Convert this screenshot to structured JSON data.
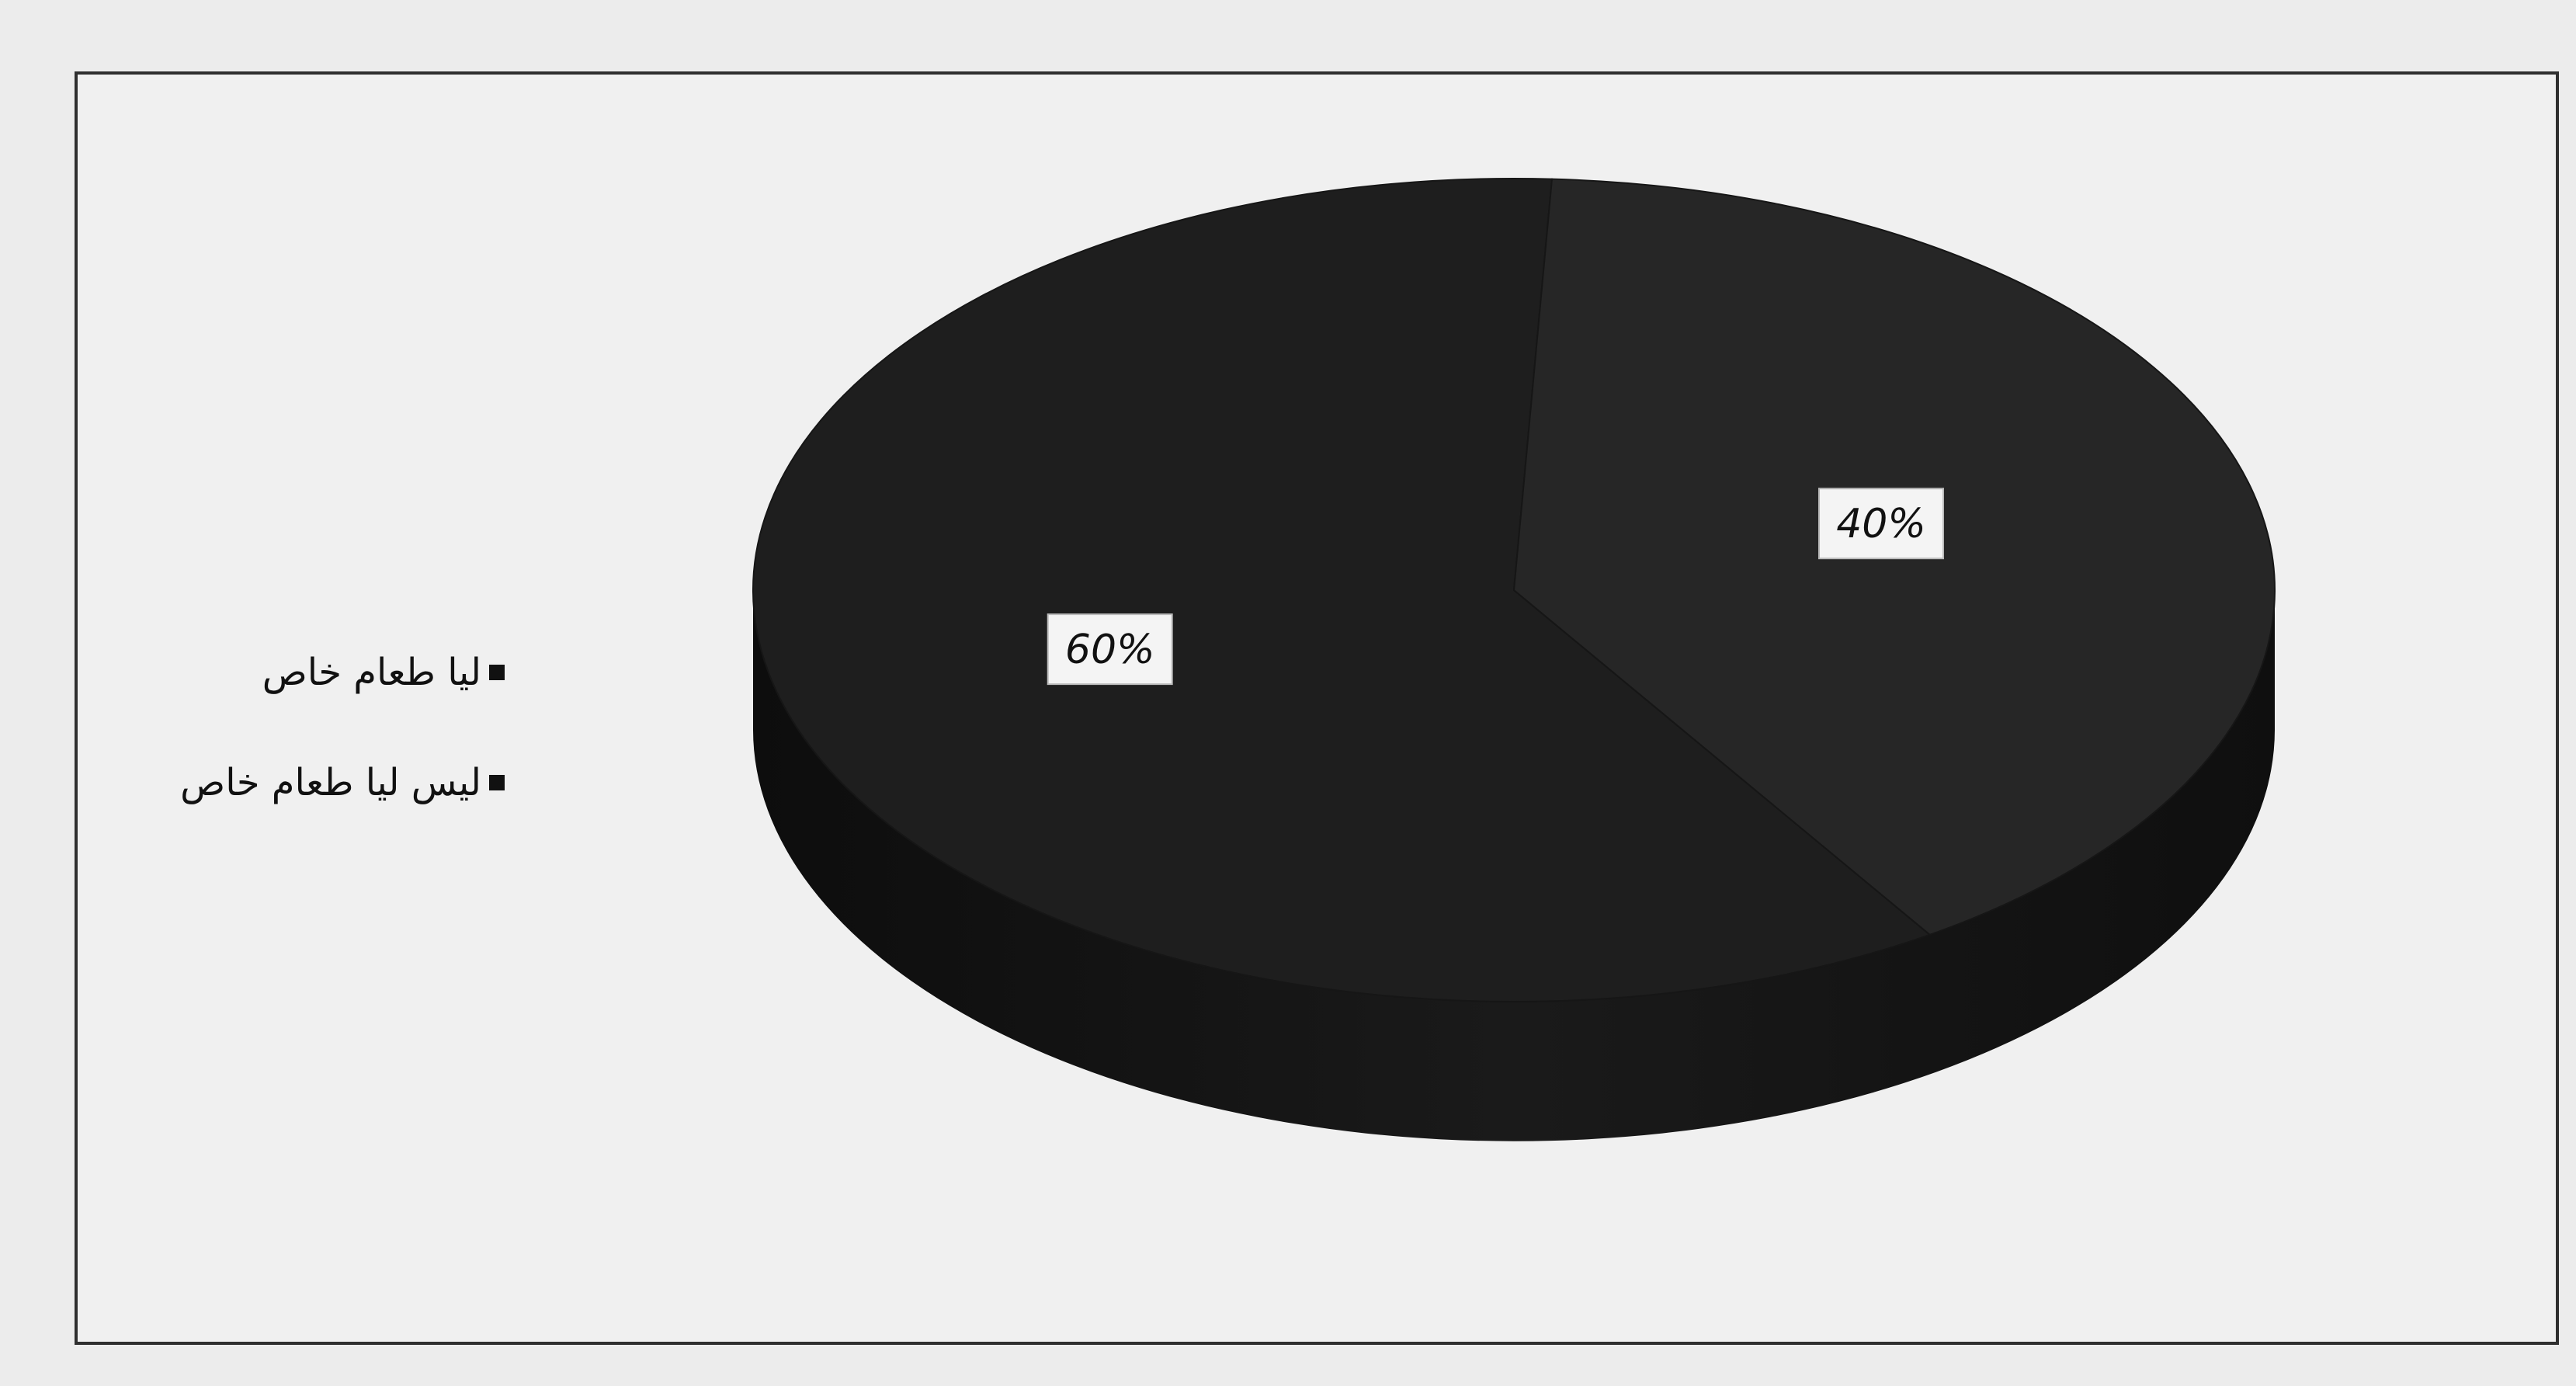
{
  "chart_data": {
    "type": "pie",
    "labels": [
      "ليا طعام خاص",
      "ليس ليا طعام خاص"
    ],
    "values": [
      60,
      40
    ],
    "data_labels": [
      "60%",
      "40%"
    ],
    "legend_position": "left",
    "style": "3d",
    "colors": [
      "#1e1e1e",
      "#262626"
    ]
  }
}
